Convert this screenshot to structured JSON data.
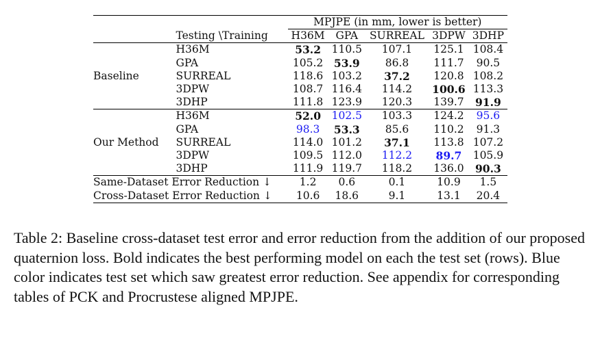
{
  "table": {
    "header_span": "MPJPE (in mm, lower is better)",
    "corner": "Testing \\Training",
    "columns": [
      "H36M",
      "GPA",
      "SURREAL",
      "3DPW",
      "3DHP"
    ],
    "groups": [
      {
        "name": "Baseline",
        "rows": [
          {
            "test": "H36M",
            "values": [
              "53.2",
              "110.5",
              "107.1",
              "125.1",
              "108.4"
            ],
            "bold": [
              0
            ],
            "blue": []
          },
          {
            "test": "GPA",
            "values": [
              "105.2",
              "53.9",
              "86.8",
              "111.7",
              "90.5"
            ],
            "bold": [
              1
            ],
            "blue": []
          },
          {
            "test": "SURREAL",
            "values": [
              "118.6",
              "103.2",
              "37.2",
              "120.8",
              "108.2"
            ],
            "bold": [
              2
            ],
            "blue": []
          },
          {
            "test": "3DPW",
            "values": [
              "108.7",
              "116.4",
              "114.2",
              "100.6",
              "113.3"
            ],
            "bold": [
              3
            ],
            "blue": []
          },
          {
            "test": "3DHP",
            "values": [
              "111.8",
              "123.9",
              "120.3",
              "139.7",
              "91.9"
            ],
            "bold": [
              4
            ],
            "blue": []
          }
        ]
      },
      {
        "name": "Our Method",
        "rows": [
          {
            "test": "H36M",
            "values": [
              "52.0",
              "102.5",
              "103.3",
              "124.2",
              "95.6"
            ],
            "bold": [
              0
            ],
            "blue": [
              1,
              4
            ]
          },
          {
            "test": "GPA",
            "values": [
              "98.3",
              "53.3",
              "85.6",
              "110.2",
              "91.3"
            ],
            "bold": [
              1
            ],
            "blue": [
              0
            ]
          },
          {
            "test": "SURREAL",
            "values": [
              "114.0",
              "101.2",
              "37.1",
              "113.8",
              "107.2"
            ],
            "bold": [
              2
            ],
            "blue": []
          },
          {
            "test": "3DPW",
            "values": [
              "109.5",
              "112.0",
              "112.2",
              "89.7",
              "105.9"
            ],
            "bold": [
              3
            ],
            "blue": [
              2,
              3
            ]
          },
          {
            "test": "3DHP",
            "values": [
              "111.9",
              "119.7",
              "118.2",
              "136.0",
              "90.3"
            ],
            "bold": [
              4
            ],
            "blue": []
          }
        ]
      }
    ],
    "reductions": [
      {
        "label": "Same-Dataset Error Reduction ↓",
        "values": [
          "1.2",
          "0.6",
          "0.1",
          "10.9",
          "1.5"
        ]
      },
      {
        "label": "Cross-Dataset Error Reduction ↓",
        "values": [
          "10.6",
          "18.6",
          "9.1",
          "13.1",
          "20.4"
        ]
      }
    ]
  },
  "caption": "Table 2: Baseline cross-dataset test error and error reduction from the addition of our proposed quaternion loss. Bold indicates the best performing model on each the test set (rows). Blue color indicates test set which saw greatest error reduction. See appendix for corresponding tables of PCK and Procrustese aligned MPJPE.",
  "colors": {
    "text": "#111111",
    "highlight_blue": "#1c1cf2",
    "rule": "#000000"
  }
}
